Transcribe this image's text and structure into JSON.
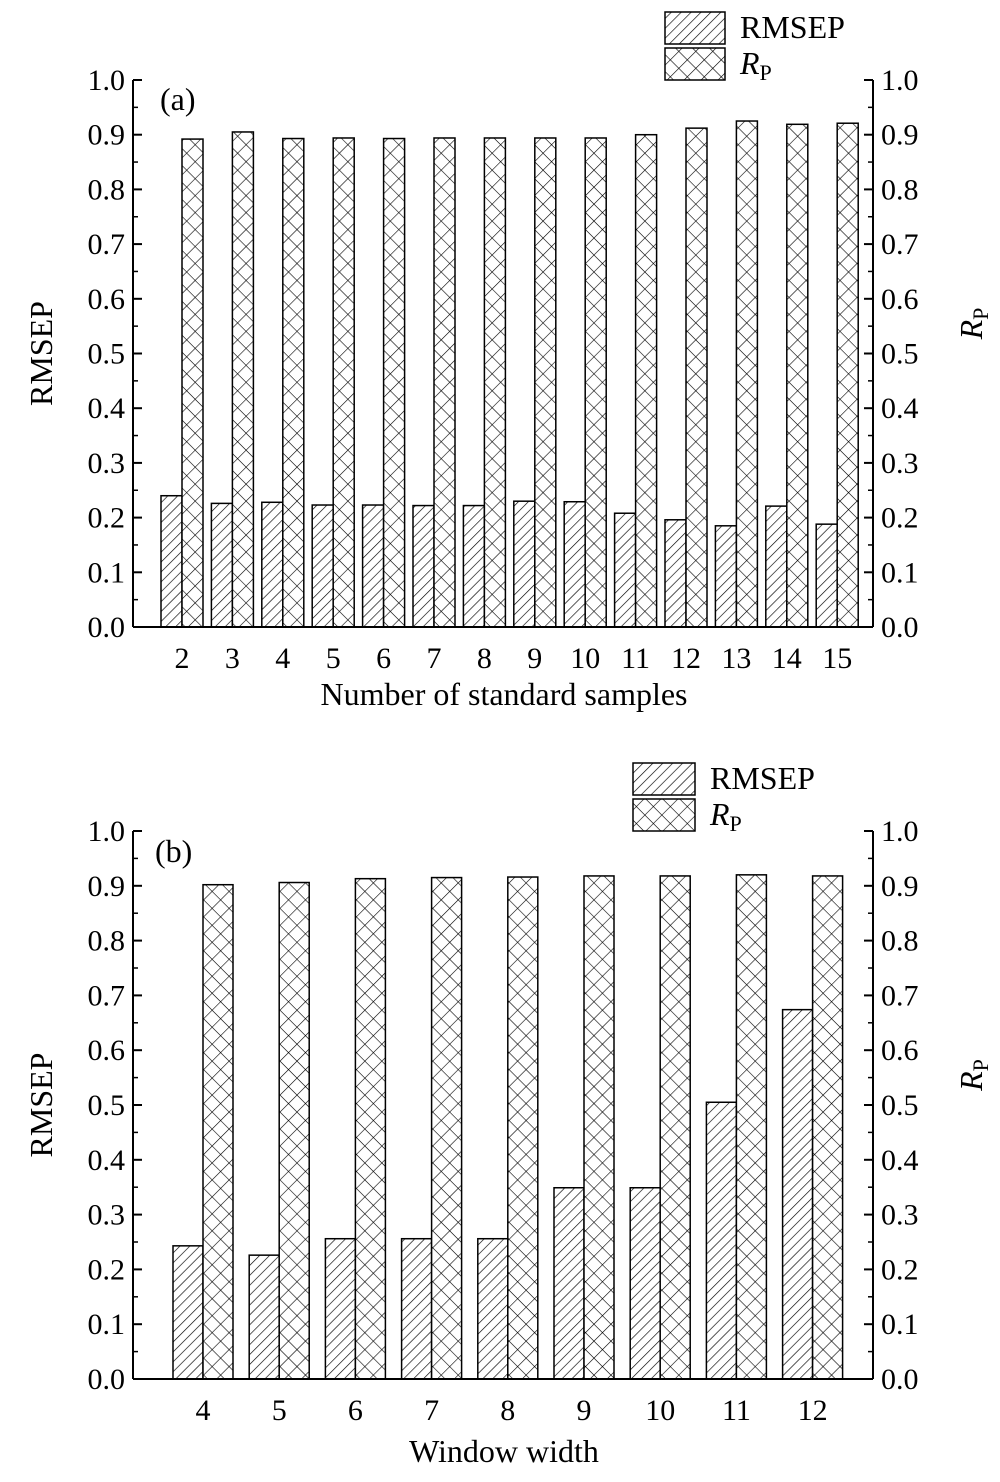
{
  "chart_data": [
    {
      "type": "bar",
      "panel_label": "(a)",
      "xlabel": "Number of standard samples",
      "ylabel_left": "RMSEP",
      "ylabel_right": {
        "main": "R",
        "sub": "P"
      },
      "ylim": [
        0,
        1.0
      ],
      "yticks": [
        "0.0",
        "0.1",
        "0.2",
        "0.3",
        "0.4",
        "0.5",
        "0.6",
        "0.7",
        "0.8",
        "0.9",
        "1.0"
      ],
      "categories": [
        "2",
        "3",
        "4",
        "5",
        "6",
        "7",
        "8",
        "9",
        "10",
        "11",
        "12",
        "13",
        "14",
        "15"
      ],
      "series": [
        {
          "name": "RMSEP",
          "pattern": "diagonal-hatch",
          "values": [
            0.24,
            0.226,
            0.228,
            0.223,
            0.223,
            0.222,
            0.222,
            0.23,
            0.229,
            0.208,
            0.196,
            0.185,
            0.221,
            0.188
          ]
        },
        {
          "name": "R_P",
          "pattern": "crosshatch",
          "values": [
            0.892,
            0.905,
            0.893,
            0.894,
            0.893,
            0.894,
            0.894,
            0.894,
            0.894,
            0.9,
            0.912,
            0.925,
            0.919,
            0.921
          ]
        }
      ],
      "legend": [
        {
          "label": "RMSEP",
          "pattern": "diagonal-hatch"
        },
        {
          "label_main": "R",
          "label_sub": "P",
          "pattern": "crosshatch"
        }
      ],
      "legend_position": "top-right",
      "grid": false
    },
    {
      "type": "bar",
      "panel_label": "(b)",
      "xlabel": "Window width",
      "ylabel_left": "RMSEP",
      "ylabel_right": {
        "main": "R",
        "sub": "P"
      },
      "ylim": [
        0,
        1.0
      ],
      "yticks": [
        "0.0",
        "0.1",
        "0.2",
        "0.3",
        "0.4",
        "0.5",
        "0.6",
        "0.7",
        "0.8",
        "0.9",
        "1.0"
      ],
      "categories": [
        "4",
        "5",
        "6",
        "7",
        "8",
        "9",
        "10",
        "11",
        "12"
      ],
      "series": [
        {
          "name": "RMSEP",
          "pattern": "diagonal-hatch",
          "values": [
            0.243,
            0.226,
            0.256,
            0.256,
            0.256,
            0.349,
            0.349,
            0.505,
            0.674
          ]
        },
        {
          "name": "R_P",
          "pattern": "crosshatch",
          "values": [
            0.902,
            0.906,
            0.913,
            0.915,
            0.916,
            0.918,
            0.918,
            0.92,
            0.918
          ]
        }
      ],
      "legend": [
        {
          "label": "RMSEP",
          "pattern": "diagonal-hatch"
        },
        {
          "label_main": "R",
          "label_sub": "P",
          "pattern": "crosshatch"
        }
      ],
      "legend_position": "top-right",
      "grid": false
    }
  ]
}
